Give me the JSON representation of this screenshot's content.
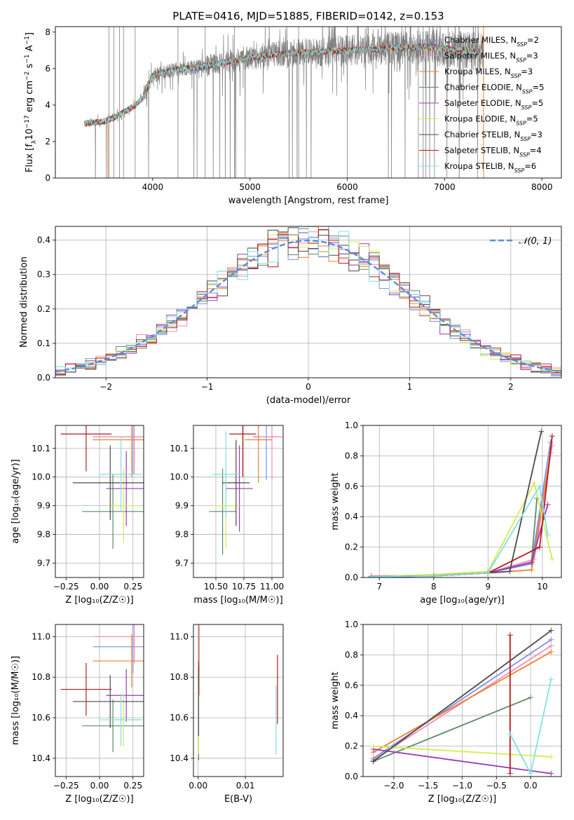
{
  "figure_title": "PLATE=0416, MJD=51885, FIBERID=0142, z=0.153",
  "colors": {
    "Chabrier MILES": "#7b8fe8",
    "Salpeter MILES": "#f28cb6",
    "Kroupa MILES": "#ef7f2c",
    "Chabrier ELODIE": "#5d8a66",
    "Salpeter ELODIE": "#9b38b8",
    "Kroupa ELODIE": "#d5ec4e",
    "Chabrier STELIB": "#4a4a4a",
    "Salpeter STELIB": "#b81818",
    "Kroupa STELIB": "#7fe0e6",
    "data": "#808080",
    "normal": "#5b8dd9"
  },
  "chart_data": [
    {
      "id": "spectrum",
      "type": "line",
      "title": "PLATE=0416, MJD=51885, FIBERID=0142, z=0.153",
      "xlabel": "wavelength [Angstrom, rest frame]",
      "ylabel_pre": "Flux [f",
      "ylabel_sub": "λ",
      "ylabel_mid": "10",
      "ylabel_sup1": "−17",
      "ylabel_post": " erg cm",
      "ylabel_sup2": "−2",
      "ylabel_s": " s",
      "ylabel_sup3": "−1",
      "ylabel_A": " A",
      "ylabel_sup4": "−1",
      "ylabel_end": "]",
      "xlim": [
        3000,
        8200
      ],
      "ylim": [
        0,
        8.3
      ],
      "xticks": [
        "4000",
        "5000",
        "6000",
        "7000",
        "8000"
      ],
      "yticks": [
        "0",
        "2",
        "4",
        "6",
        "8"
      ],
      "legend": [
        {
          "name": "Chabrier MILES",
          "nssp": "2"
        },
        {
          "name": "Salpeter MILES",
          "nssp": "3"
        },
        {
          "name": "Kroupa MILES",
          "nssp": "3"
        },
        {
          "name": "Chabrier ELODIE",
          "nssp": "5"
        },
        {
          "name": "Salpeter ELODIE",
          "nssp": "5"
        },
        {
          "name": "Kroupa ELODIE",
          "nssp": "5"
        },
        {
          "name": "Chabrier STELIB",
          "nssp": "3"
        },
        {
          "name": "Salpeter STELIB",
          "nssp": "4"
        },
        {
          "name": "Kroupa STELIB",
          "nssp": "6"
        }
      ],
      "legend_placement": "right",
      "continuum": [
        [
          3300,
          3.0
        ],
        [
          3400,
          3.05
        ],
        [
          3500,
          3.1
        ],
        [
          3600,
          3.3
        ],
        [
          3700,
          3.6
        ],
        [
          3800,
          3.9
        ],
        [
          3900,
          4.4
        ],
        [
          4000,
          5.6
        ],
        [
          4100,
          5.8
        ],
        [
          4300,
          6.0
        ],
        [
          4500,
          6.1
        ],
        [
          4700,
          6.3
        ],
        [
          5000,
          6.6
        ],
        [
          5300,
          6.8
        ],
        [
          5600,
          6.9
        ],
        [
          6000,
          7.0
        ],
        [
          6400,
          7.1
        ],
        [
          6800,
          7.2
        ],
        [
          7000,
          7.1
        ],
        [
          7200,
          7.0
        ],
        [
          7400,
          6.9
        ]
      ],
      "strong_dips": [
        3550,
        3600,
        3660,
        3700,
        3820,
        4260,
        4540,
        4840,
        5500,
        6000,
        6730,
        6780,
        7150
      ]
    },
    {
      "id": "residuals",
      "type": "bar",
      "xlabel": "(data-model)/error",
      "ylabel": "Normed distribution",
      "xlim": [
        -2.5,
        2.5
      ],
      "ylim": [
        0,
        0.44
      ],
      "xticks": [
        "−2",
        "−1",
        "0",
        "1",
        "2"
      ],
      "yticks": [
        "0.0",
        "0.1",
        "0.2",
        "0.3",
        "0.4"
      ],
      "legend": "𝒩(0, 1)",
      "legend_placement": "top-right",
      "bin_width": 0.1,
      "grid": true
    },
    {
      "id": "age-vs-Z",
      "type": "scatter",
      "xlabel": "Z [log₁₀(Z/Z☉)]",
      "ylabel": "age  [log₁₀(age/yr)]",
      "xlim": [
        -0.33,
        0.33
      ],
      "ylim": [
        9.65,
        10.18
      ],
      "xticks": [
        "−0.25",
        "0.00",
        "0.25"
      ],
      "yticks": [
        "9.7",
        "9.8",
        "9.9",
        "10.0",
        "10.1"
      ],
      "grid": true
    },
    {
      "id": "age-vs-mass",
      "type": "scatter",
      "xlabel": "mass [log₁₀(M/M☉)]",
      "xlim": [
        10.3,
        11.1
      ],
      "ylim": [
        9.65,
        10.18
      ],
      "xticks": [
        "10.50",
        "10.75",
        "11.00"
      ],
      "yticks": [
        "9.7",
        "9.8",
        "9.9",
        "10.0",
        "10.1"
      ],
      "grid": true
    },
    {
      "id": "weight-vs-age",
      "type": "line",
      "xlabel": "age  [log₁₀(age/yr)]",
      "ylabel": "mass weight",
      "xlim": [
        6.7,
        10.35
      ],
      "ylim": [
        0,
        1.0
      ],
      "xticks": [
        "7",
        "8",
        "9",
        "10"
      ],
      "yticks": [
        "0.0",
        "0.2",
        "0.4",
        "0.6",
        "0.8",
        "1.0"
      ],
      "grid": true
    },
    {
      "id": "mass-vs-Z",
      "type": "scatter",
      "xlabel": "Z [log₁₀(Z/Z☉)]",
      "ylabel": "mass [log₁₀(M/M☉)]",
      "xlim": [
        -0.33,
        0.33
      ],
      "ylim": [
        10.31,
        11.06
      ],
      "xticks": [
        "−0.25",
        "0.00",
        "0.25"
      ],
      "yticks": [
        "10.4",
        "10.6",
        "10.8",
        "11.0"
      ],
      "grid": true
    },
    {
      "id": "mass-vs-ebv",
      "type": "scatter",
      "xlabel": "E(B-V)",
      "xlim": [
        -0.001,
        0.018
      ],
      "ylim": [
        10.31,
        11.06
      ],
      "xticks": [
        "0.00",
        "0.01"
      ],
      "yticks": [
        "10.4",
        "10.6",
        "10.8",
        "11.0"
      ],
      "grid": true
    },
    {
      "id": "weight-vs-Z",
      "type": "line",
      "xlabel": "Z [log₁₀(Z/Z☉)]",
      "ylabel": "mass weight",
      "xlim": [
        -2.45,
        0.45
      ],
      "ylim": [
        0,
        1.0
      ],
      "xticks": [
        "−2.0",
        "−1.5",
        "−1.0",
        "−0.5",
        "0.0"
      ],
      "yticks": [
        "0.0",
        "0.2",
        "0.4",
        "0.6",
        "0.8",
        "1.0"
      ],
      "grid": true
    }
  ],
  "models": [
    {
      "name": "Chabrier MILES",
      "Z": [
        0.25,
        0.24,
        0.03,
        0.07
      ],
      "age": [
        10.14,
        10.14,
        10.01,
        10.07
      ],
      "mass": [
        10.95,
        10.96,
        10.86,
        10.72
      ],
      "wt_age": [
        [
          6.85,
          0.005
        ],
        [
          8.0,
          0.01
        ],
        [
          9.0,
          0.03
        ],
        [
          9.8,
          0.09
        ],
        [
          10.15,
          0.89
        ]
      ],
      "wt_Z": [
        [
          -2.3,
          0.12
        ],
        [
          0.3,
          0.9
        ]
      ],
      "ebv": 0.0001
    },
    {
      "name": "Salpeter MILES",
      "Z": [
        0.26,
        0.22,
        0.04,
        0.08
      ],
      "age": [
        10.14,
        10.15,
        10.13,
        10.09
      ],
      "mass": [
        11.0,
        11.03,
        10.97,
        10.78
      ],
      "wt_age": [
        [
          6.85,
          0.01
        ],
        [
          8.0,
          0.015
        ],
        [
          9.0,
          0.03
        ],
        [
          9.85,
          0.12
        ],
        [
          10.18,
          0.87
        ]
      ],
      "wt_Z": [
        [
          -2.3,
          0.11
        ],
        [
          0.3,
          0.86
        ]
      ],
      "ebv": 0.0002
    },
    {
      "name": "Kroupa MILES",
      "Z": [
        0.24,
        0.22,
        0.03,
        0.08
      ],
      "age": [
        10.13,
        10.14,
        10.02,
        10.09
      ],
      "mass": [
        10.88,
        10.87,
        10.89,
        10.84
      ],
      "wt_age": [
        [
          6.85,
          0.005
        ],
        [
          8.0,
          0.01
        ],
        [
          9.0,
          0.03
        ],
        [
          9.8,
          0.05
        ],
        [
          10.15,
          0.82
        ]
      ],
      "wt_Z": [
        [
          -2.3,
          0.16
        ],
        [
          0.3,
          0.82
        ]
      ],
      "ebv": 0.0002
    },
    {
      "name": "Chabrier ELODIE",
      "Z": [
        0.1,
        0.02,
        0.25,
        0.12
      ],
      "age": [
        9.88,
        9.88,
        10.13,
        9.75
      ],
      "mass": [
        10.56,
        10.57,
        10.56,
        10.55
      ],
      "wt_age": [
        [
          6.85,
          0.005
        ],
        [
          8.0,
          0.01
        ],
        [
          9.0,
          0.03
        ],
        [
          9.8,
          0.1
        ],
        [
          9.9,
          0.52
        ]
      ],
      "wt_Z": [
        [
          -2.3,
          0.1
        ],
        [
          0.0,
          0.52
        ]
      ],
      "ebv": 0.0001
    },
    {
      "name": "Salpeter ELODIE",
      "Z": [
        0.2,
        0.02,
        0.13,
        0.12
      ],
      "age": [
        9.96,
        9.96,
        10.05,
        9.68
      ],
      "mass": [
        10.71,
        10.72,
        10.71,
        10.68
      ],
      "wt_age": [
        [
          6.85,
          0.005
        ],
        [
          8.0,
          0.01
        ],
        [
          9.0,
          0.03
        ],
        [
          9.8,
          0.1
        ],
        [
          10.1,
          0.48
        ]
      ],
      "wt_Z": [
        [
          -2.3,
          0.18
        ],
        [
          0.3,
          0.02
        ]
      ],
      "ebv": 0.0001
    },
    {
      "name": "Kroupa ELODIE",
      "Z": [
        0.18,
        0.03,
        0.22,
        0.12
      ],
      "age": [
        9.9,
        9.9,
        10.05,
        9.75
      ],
      "mass": [
        10.59,
        10.6,
        10.56,
        10.5
      ],
      "wt_age": [
        [
          6.85,
          0.005
        ],
        [
          8.0,
          0.02
        ],
        [
          9.0,
          0.04
        ],
        [
          9.85,
          0.62
        ],
        [
          10.18,
          0.12
        ]
      ],
      "wt_Z": [
        [
          -2.3,
          0.2
        ],
        [
          0.3,
          0.13
        ]
      ],
      "ebv": 0.0001
    },
    {
      "name": "Chabrier STELIB",
      "Z": [
        0.08,
        0.22,
        0.28,
        0.15
      ],
      "age": [
        9.98,
        9.98,
        10.12,
        9.85
      ],
      "mass": [
        10.68,
        10.69,
        10.7,
        10.61
      ],
      "wt_age": [
        [
          6.85,
          0.005
        ],
        [
          8.0,
          0.01
        ],
        [
          9.0,
          0.03
        ],
        [
          9.4,
          0.04
        ],
        [
          9.98,
          0.96
        ]
      ],
      "wt_Z": [
        [
          -2.3,
          0.1
        ],
        [
          0.3,
          0.96
        ]
      ],
      "ebv": 0.0001
    },
    {
      "name": "Salpeter STELIB",
      "Z": [
        -0.1,
        0.2,
        0.01,
        0.01
      ],
      "age": [
        10.15,
        10.16,
        10.09,
        9.94
      ],
      "mass": [
        10.74,
        10.76,
        10.72,
        10.64
      ],
      "wt_age": [
        [
          6.85,
          0.005
        ],
        [
          8.0,
          0.01
        ],
        [
          9.0,
          0.03
        ],
        [
          9.95,
          0.2
        ],
        [
          10.18,
          0.93
        ]
      ],
      "wt_Z": [
        [
          -0.3,
          0.02
        ],
        [
          -0.3,
          0.93
        ]
      ],
      "ebv": 0.0168
    },
    {
      "name": "Kroupa STELIB",
      "Z": [
        0.16,
        0.2,
        0.08,
        0.12
      ],
      "age": [
        10.01,
        10.01,
        10.09,
        9.78
      ],
      "mass": [
        10.59,
        10.6,
        10.56,
        10.46
      ],
      "wt_age": [
        [
          6.85,
          0.005
        ],
        [
          8.0,
          0.01
        ],
        [
          9.0,
          0.03
        ],
        [
          9.95,
          0.6
        ],
        [
          10.1,
          0.28
        ]
      ],
      "wt_Z": [
        [
          -0.3,
          0.28
        ],
        [
          0.0,
          0.02
        ],
        [
          0.3,
          0.64
        ]
      ],
      "ebv": 0.0165
    }
  ]
}
